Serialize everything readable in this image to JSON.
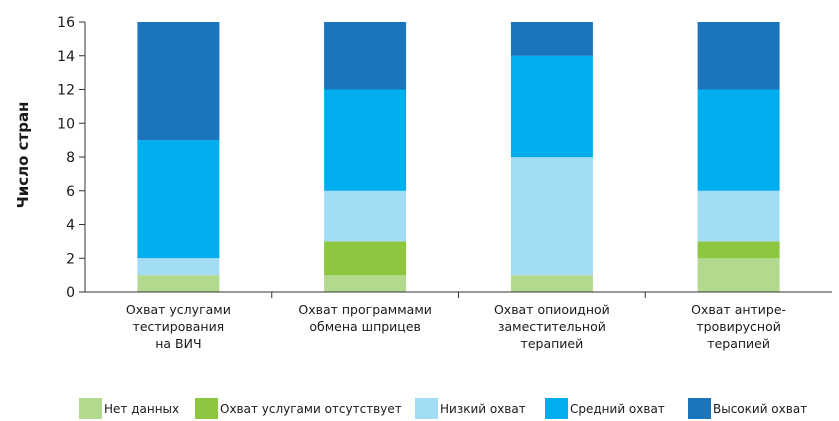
{
  "chart_data": {
    "type": "bar",
    "stacked": true,
    "ylabel": "Число стран",
    "ylim": [
      0,
      16
    ],
    "yticks": [
      0,
      2,
      4,
      6,
      8,
      10,
      12,
      14,
      16
    ],
    "categories": [
      [
        "Охват услугами",
        "тестирования",
        "на ВИЧ"
      ],
      [
        "Охват программами",
        "обмена шприцев"
      ],
      [
        "Охват опиоидной",
        "заместительной",
        "терапией"
      ],
      [
        "Охват антире-",
        "тровирусной",
        "терапией"
      ]
    ],
    "series": [
      {
        "name": "Нет данных",
        "color": "#b3d98e",
        "values": [
          1,
          1,
          1,
          2
        ]
      },
      {
        "name": "Охват услугами отсутствует",
        "color": "#8dc63f",
        "values": [
          0,
          2,
          0,
          1
        ]
      },
      {
        "name": "Низкий охват",
        "color": "#a3dcf5",
        "values": [
          1,
          3,
          7,
          3
        ]
      },
      {
        "name": "Средний охват",
        "color": "#00aeef",
        "values": [
          7,
          6,
          6,
          6
        ]
      },
      {
        "name": "Высокий охват",
        "color": "#1b75bc",
        "values": [
          7,
          4,
          2,
          4
        ]
      }
    ],
    "legend_position": "bottom",
    "grid": false
  }
}
